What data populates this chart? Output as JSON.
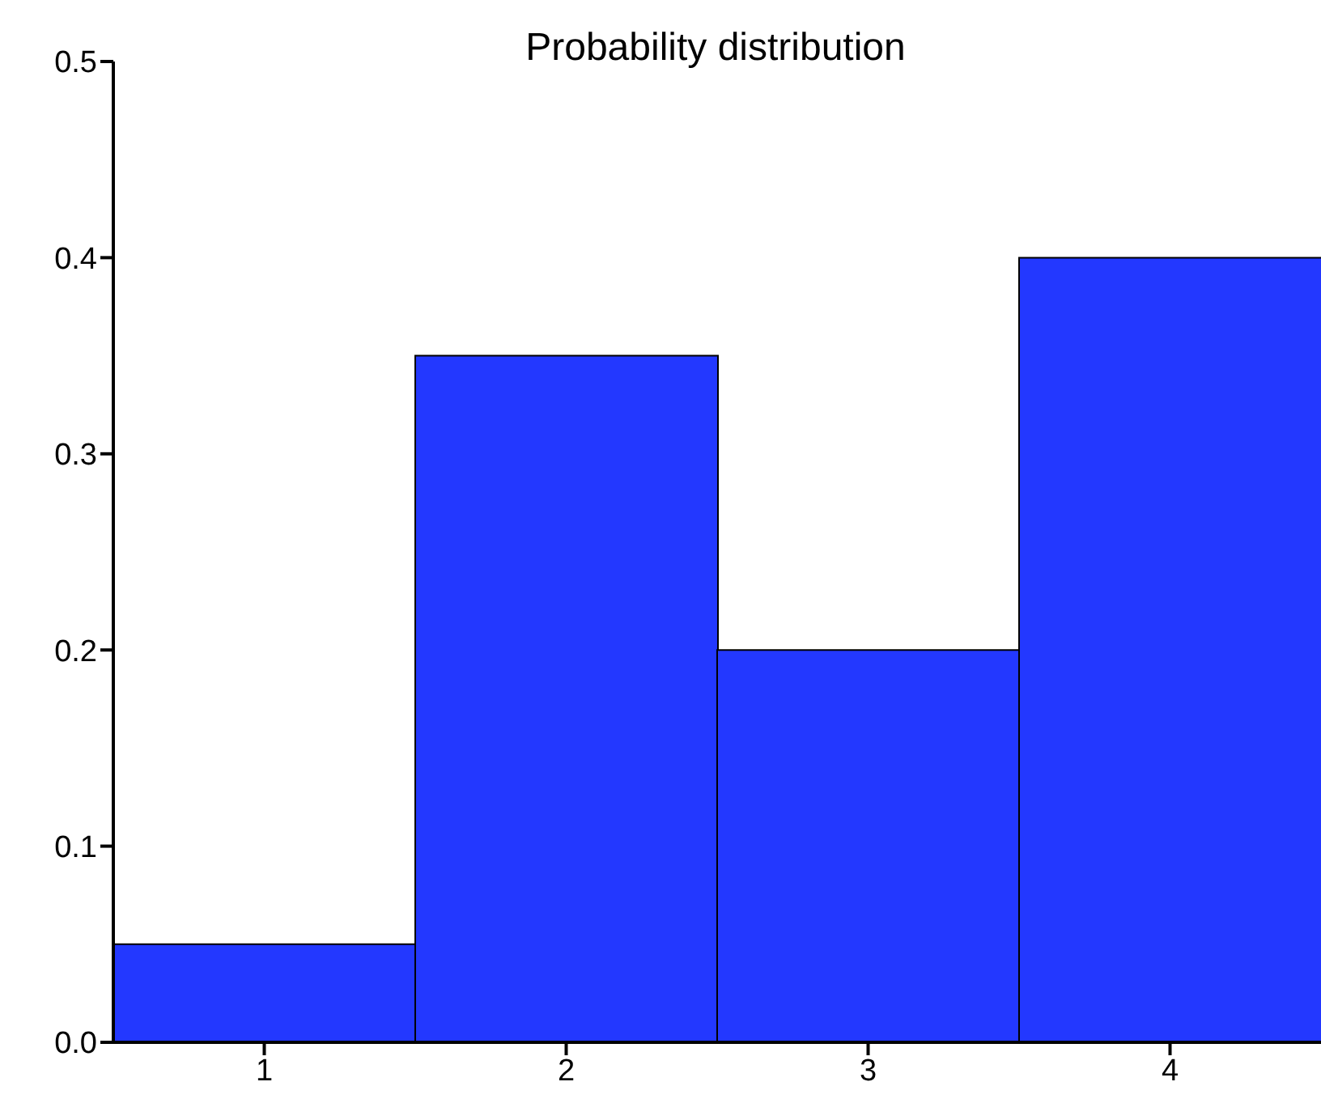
{
  "chart_data": {
    "type": "bar",
    "title": "Probability distribution",
    "categories": [
      "1",
      "2",
      "3",
      "4"
    ],
    "values": [
      0.05,
      0.35,
      0.2,
      0.4
    ],
    "color": "#2338ff",
    "ylim": [
      0,
      0.5
    ],
    "yticks": [
      {
        "value": 0,
        "label": "0.0"
      },
      0.1,
      0.2,
      0.3,
      0.4,
      0.5
    ]
  }
}
